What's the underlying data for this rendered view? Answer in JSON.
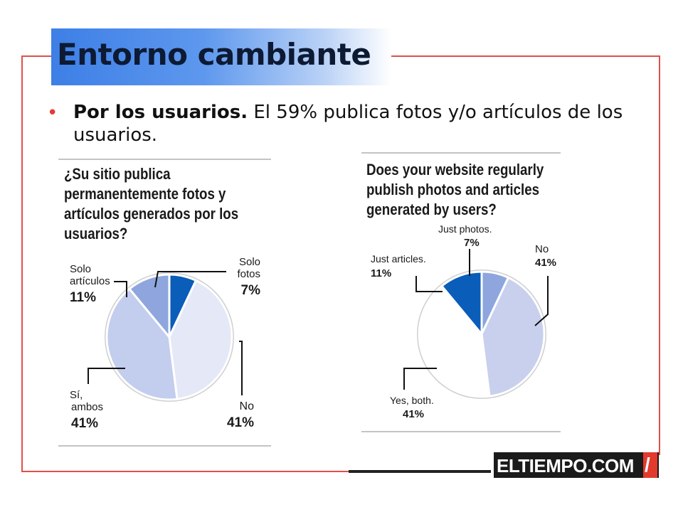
{
  "slide": {
    "title": "Entorno cambiante",
    "bullet_symbol": "•",
    "bullet_bold": "Por los usuarios.",
    "bullet_text": " El 59% publica fotos y/o artículos de los usuarios.",
    "logo_text": "ELTIEMPO.COM",
    "logo_slash": "/"
  },
  "colors": {
    "accent_red": "#e0504a",
    "title_blue": "#3d7fe6",
    "slice_dark": "#0a5db8",
    "slice_mid": "#8ea6dd",
    "slice_light": "#c3cdee",
    "slice_pale": "#e4e8f7",
    "slice_white": "#ffffff"
  },
  "chart_data": [
    {
      "type": "pie",
      "title": "¿Su sitio publica permanentemente fotos y artículos generados por los usuarios?",
      "slices": [
        {
          "label": "No",
          "value": 41,
          "value_label": "41%",
          "color": "#e4e8f7"
        },
        {
          "label": "Sí, ambos",
          "value": 41,
          "value_label": "41%",
          "color": "#c3cdee"
        },
        {
          "label": "Solo artículos",
          "value": 11,
          "value_label": "11%",
          "color": "#8ea6dd"
        },
        {
          "label": "Solo fotos",
          "value": 7,
          "value_label": "7%",
          "color": "#0a5db8"
        }
      ]
    },
    {
      "type": "pie",
      "title": "Does your website regularly publish photos and articles generated by users?",
      "slices": [
        {
          "label": "No",
          "value": 41,
          "value_label": "41%",
          "color": "#c8d0ee"
        },
        {
          "label": "Yes, both.",
          "value": 41,
          "value_label": "41%",
          "color": "#ffffff"
        },
        {
          "label": "Just articles.",
          "value": 11,
          "value_label": "11%",
          "color": "#0a5db8"
        },
        {
          "label": "Just photos.",
          "value": 7,
          "value_label": "7%",
          "color": "#8ea6dd"
        }
      ]
    }
  ],
  "labels": {
    "left": {
      "title_lines": [
        "¿Su sitio publica",
        "permanentemente fotos y",
        "artículos generados por los",
        "usuarios?"
      ],
      "solo_articulos_lines": [
        "Solo",
        "artículos"
      ],
      "solo_articulos_pct": "11%",
      "solo_fotos_lines": [
        "Solo",
        "fotos"
      ],
      "solo_fotos_pct": "7%",
      "si_ambos_lines": [
        "Sí,",
        "ambos"
      ],
      "si_ambos_pct": "41%",
      "no_label": "No",
      "no_pct": "41%"
    },
    "right": {
      "title_lines": [
        "Does your website regularly",
        "publish photos and articles",
        "generated by users?"
      ],
      "just_photos": "Just photos.",
      "just_photos_pct": "7%",
      "just_articles": "Just articles.",
      "just_articles_pct": "11%",
      "no_label": "No",
      "no_pct": "41%",
      "yes_both": "Yes, both.",
      "yes_both_pct": "41%"
    }
  }
}
